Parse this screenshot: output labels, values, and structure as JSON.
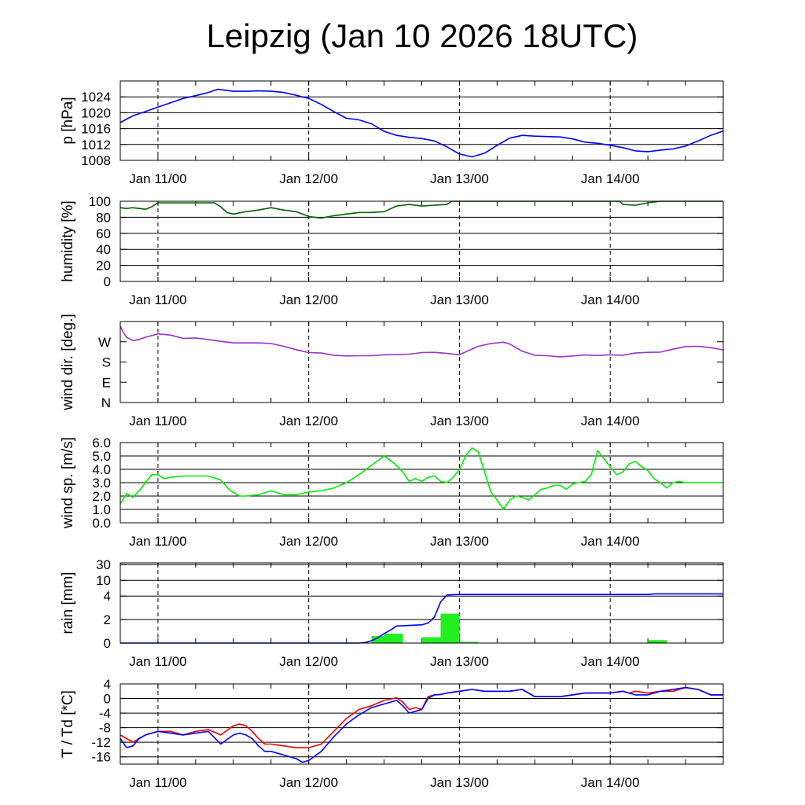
{
  "title": "Leipzig (Jan 10 2026 18UTC)",
  "x_tick_labels": [
    "Jan 11/00",
    "Jan 12/00",
    "Jan 13/00",
    "Jan 14/00"
  ],
  "x_tick_hours": [
    6,
    30,
    54,
    78
  ],
  "x_range_hours": [
    0,
    96
  ],
  "colors": {
    "pressure": "#0000ff",
    "humidity": "#006400",
    "wind_dir": "#9932cc",
    "wind_speed": "#00ee00",
    "rain_bar": "#22ee22",
    "rain_cum": "#0000ff",
    "temp": "#ee0000",
    "dewpoint": "#0000ff"
  },
  "chart_data": [
    {
      "type": "line",
      "id": "pressure",
      "ylabel": "p [hPa]",
      "ylim": [
        1008,
        1028
      ],
      "yticks": [
        1008,
        1012,
        1016,
        1020,
        1024
      ],
      "ytick_labels": [
        "1008",
        "1012",
        "1016",
        "1020",
        "1024"
      ],
      "series": [
        {
          "name": "p",
          "x": [
            0,
            1,
            2,
            4,
            6,
            8,
            10,
            12,
            14,
            15.5,
            18,
            20,
            22,
            24,
            26,
            28,
            30,
            32,
            34,
            36,
            38,
            40,
            42,
            44,
            46,
            48,
            50,
            52,
            54,
            56,
            58,
            60,
            62,
            64,
            66,
            68,
            70,
            72,
            74,
            76,
            78,
            80,
            82,
            84,
            86,
            88,
            90,
            92,
            94,
            96
          ],
          "y": [
            1017.5,
            1018.4,
            1019.2,
            1020.3,
            1021.4,
            1022.5,
            1023.6,
            1024.3,
            1025.1,
            1025.9,
            1025.4,
            1025.4,
            1025.5,
            1025.4,
            1025.1,
            1024.4,
            1023.6,
            1022.1,
            1020.3,
            1018.6,
            1018.2,
            1017.2,
            1015.3,
            1014.3,
            1013.8,
            1013.5,
            1012.9,
            1011.4,
            1009.6,
            1008.9,
            1009.8,
            1011.8,
            1013.6,
            1014.3,
            1014.1,
            1014.0,
            1013.9,
            1013.4,
            1012.6,
            1012.3,
            1011.8,
            1011.2,
            1010.4,
            1010.2,
            1010.6,
            1010.9,
            1011.6,
            1012.9,
            1014.3,
            1015.4
          ]
        }
      ]
    },
    {
      "type": "line",
      "id": "humidity",
      "ylabel": "humidity [%]",
      "ylim": [
        0,
        100
      ],
      "yticks": [
        0,
        20,
        40,
        60,
        80,
        100
      ],
      "ytick_labels": [
        "0",
        "20",
        "40",
        "60",
        "80",
        "100"
      ],
      "series": [
        {
          "name": "humidity",
          "x": [
            0,
            1,
            2,
            4,
            5,
            6,
            8,
            10,
            12,
            14,
            15,
            16,
            17,
            18,
            20,
            22,
            24,
            26,
            28,
            29,
            30,
            32,
            34,
            36,
            38,
            40,
            42,
            44,
            46,
            48,
            50,
            52,
            52.8,
            54,
            56,
            60,
            62,
            64,
            66,
            68,
            70,
            72,
            74,
            76,
            78,
            79.5,
            80,
            82,
            84,
            86,
            88,
            90,
            92,
            94,
            96
          ],
          "y": [
            92,
            91,
            92,
            90,
            93,
            98,
            98,
            98,
            98,
            98,
            98,
            93,
            86,
            84,
            87,
            89,
            92,
            89,
            87,
            84,
            81,
            79,
            82,
            84,
            86,
            86,
            87,
            94,
            96,
            94,
            95,
            96,
            100,
            100,
            100,
            100,
            100,
            100,
            100,
            100,
            100,
            100,
            100,
            100,
            100,
            100,
            96,
            95,
            98,
            100,
            100,
            100,
            100,
            100,
            100
          ]
        }
      ]
    },
    {
      "type": "line",
      "id": "wind_dir",
      "ylabel": "wind dir. [deg.]",
      "ylim": [
        0,
        360
      ],
      "yticks": [
        0,
        90,
        180,
        270
      ],
      "ytick_labels": [
        "N",
        "E",
        "S",
        "W"
      ],
      "series": [
        {
          "name": "direction",
          "x": [
            0,
            0.5,
            1,
            2,
            3,
            4,
            6,
            8,
            10,
            12,
            14,
            16,
            18,
            20,
            22,
            24,
            26,
            28,
            30,
            32,
            34,
            36,
            38,
            40,
            42,
            44,
            46,
            48,
            50,
            52,
            54,
            55,
            57,
            59,
            61,
            62,
            64,
            66,
            68,
            70,
            72,
            74,
            76,
            78,
            80,
            82,
            84,
            86,
            88,
            90,
            92,
            94,
            96
          ],
          "y": [
            340,
            310,
            290,
            275,
            280,
            290,
            305,
            300,
            285,
            287,
            280,
            272,
            265,
            265,
            265,
            262,
            250,
            235,
            222,
            220,
            210,
            207,
            208,
            208,
            212,
            213,
            215,
            222,
            223,
            218,
            212,
            225,
            250,
            262,
            268,
            260,
            228,
            210,
            208,
            203,
            207,
            211,
            209,
            212,
            210,
            220,
            223,
            224,
            237,
            249,
            250,
            244,
            234
          ]
        }
      ]
    },
    {
      "type": "line",
      "id": "wind_speed",
      "ylabel": "wind sp. [m/s]",
      "ylim": [
        0,
        6
      ],
      "yticks": [
        0,
        1,
        2,
        3,
        4,
        5,
        6
      ],
      "ytick_labels": [
        "0.0",
        "1.0",
        "2.0",
        "3.0",
        "4.0",
        "5.0",
        "6.0"
      ],
      "series": [
        {
          "name": "speed",
          "x": [
            0,
            1,
            2,
            3,
            4,
            5,
            6,
            7,
            8,
            10,
            12,
            14,
            16,
            17.5,
            19,
            20,
            22,
            24,
            26,
            28,
            30,
            32,
            34,
            36,
            38,
            40,
            42,
            43.5,
            45,
            46,
            47,
            48,
            49,
            50,
            51,
            52,
            53,
            54,
            55,
            56,
            57,
            58,
            59,
            60,
            61,
            62,
            63,
            64,
            65,
            66,
            67,
            68,
            69,
            70,
            71,
            72,
            73,
            74,
            75,
            76,
            77,
            78,
            79,
            80,
            81,
            82,
            83,
            84,
            85,
            86,
            87,
            88,
            89,
            90,
            91,
            92,
            93,
            94,
            95,
            96
          ],
          "y": [
            1.4,
            2.2,
            1.9,
            2.4,
            3.0,
            3.6,
            3.6,
            3.3,
            3.4,
            3.5,
            3.5,
            3.5,
            3.2,
            2.4,
            2.0,
            2.0,
            2.1,
            2.4,
            2.1,
            2.1,
            2.3,
            2.4,
            2.6,
            3.0,
            3.6,
            4.3,
            5.0,
            4.5,
            3.8,
            3.1,
            3.3,
            3.1,
            3.4,
            3.5,
            3.1,
            3.0,
            3.4,
            4.0,
            5.0,
            5.6,
            5.3,
            3.8,
            2.3,
            1.7,
            1.0,
            1.7,
            2.0,
            1.9,
            1.7,
            2.1,
            2.5,
            2.6,
            2.8,
            2.8,
            2.5,
            2.9,
            3.0,
            3.1,
            3.6,
            5.4,
            4.8,
            4.2,
            3.6,
            3.8,
            4.4,
            4.6,
            4.2,
            3.9,
            3.3,
            3.0,
            2.6,
            3.0,
            3.1,
            3.0,
            3.0,
            3.0,
            3.0,
            3.0,
            3.0,
            3.0
          ]
        }
      ]
    },
    {
      "type": "bar+line",
      "id": "rain",
      "ylabel": "rain [mm]",
      "scale": "sqrt-like",
      "yticks": [
        0,
        2,
        4,
        10,
        30
      ],
      "ytick_labels": [
        "0",
        "2",
        "4",
        "10",
        "30"
      ],
      "bars": {
        "name": "rain_3h",
        "x_start": [
          40,
          42,
          48,
          51,
          54,
          84
        ],
        "x_end": [
          42,
          45,
          51,
          54,
          57,
          87
        ],
        "values": [
          0.6,
          0.8,
          0.5,
          2.5,
          0.1,
          0.25
        ]
      },
      "series": [
        {
          "name": "rain_total",
          "x": [
            0,
            20,
            38,
            39,
            40,
            41,
            42,
            43,
            44,
            46,
            48,
            49,
            50,
            51,
            52,
            53,
            54,
            60,
            70,
            80,
            84,
            85,
            86,
            90,
            96
          ],
          "y": [
            0,
            0,
            0,
            0.05,
            0.2,
            0.45,
            0.8,
            1.1,
            1.45,
            1.5,
            1.55,
            1.7,
            2.2,
            3.5,
            4.4,
            4.55,
            4.6,
            4.6,
            4.6,
            4.6,
            4.6,
            4.85,
            4.85,
            4.85,
            4.85
          ]
        }
      ]
    },
    {
      "type": "line",
      "id": "temperature",
      "ylabel": "T / Td [*C]",
      "ylim": [
        -18,
        4
      ],
      "yticks": [
        -16,
        -12,
        -8,
        -4,
        0,
        4
      ],
      "ytick_labels": [
        "-16",
        "-12",
        "-8",
        "-4",
        "0",
        "4"
      ],
      "series": [
        {
          "name": "T",
          "x": [
            0,
            1,
            2,
            3,
            4,
            6,
            8,
            10,
            12,
            14,
            16,
            18,
            19,
            20,
            21,
            22,
            23,
            24,
            26,
            28,
            29,
            30,
            32,
            34,
            36,
            38,
            40,
            42,
            44,
            45,
            46,
            47,
            48,
            49,
            50,
            51,
            52,
            54,
            56,
            58,
            60,
            62,
            64,
            66,
            68,
            70,
            72,
            74,
            76,
            78,
            80,
            81,
            82,
            84,
            86,
            88,
            90,
            92,
            94,
            96
          ],
          "y": [
            -10,
            -11,
            -12,
            -11,
            -10,
            -9,
            -9,
            -10,
            -9,
            -8.5,
            -10,
            -7.5,
            -7,
            -7.5,
            -9,
            -11,
            -12.5,
            -12.5,
            -13,
            -13.5,
            -13.5,
            -13.5,
            -12.5,
            -9,
            -5.5,
            -3,
            -2,
            -0.5,
            0.2,
            -1,
            -3,
            -2.5,
            -3,
            0.5,
            1,
            1.1,
            1.5,
            2,
            2.5,
            2,
            2,
            2,
            2.5,
            0.5,
            0.5,
            0.5,
            1,
            1.5,
            1.5,
            1.5,
            2,
            1.5,
            2,
            1.5,
            2,
            2,
            3,
            2.5,
            1,
            1
          ]
        },
        {
          "name": "Td",
          "x": [
            0,
            1,
            2,
            3,
            4,
            6,
            8,
            10,
            12,
            14,
            16,
            18,
            19,
            20,
            21,
            22,
            23,
            24,
            26,
            28,
            29,
            30,
            32,
            34,
            36,
            38,
            40,
            42,
            44,
            45,
            46,
            47,
            48,
            49,
            50,
            51,
            52,
            54,
            56,
            58,
            60,
            62,
            64,
            66,
            68,
            70,
            72,
            74,
            76,
            78,
            80,
            81,
            82,
            84,
            86,
            88,
            90,
            92,
            94,
            96
          ],
          "y": [
            -11,
            -13.5,
            -13,
            -11,
            -10,
            -9,
            -9.5,
            -10,
            -9.5,
            -9,
            -12.5,
            -10,
            -9.5,
            -10,
            -11,
            -13,
            -14.5,
            -14.5,
            -15.5,
            -16.5,
            -17.5,
            -17,
            -14.5,
            -10.5,
            -7,
            -4.5,
            -2.5,
            -1.5,
            -0.5,
            -2,
            -4,
            -3.5,
            -3,
            0,
            1,
            1.1,
            1.5,
            2,
            2.5,
            2,
            2,
            2,
            2.5,
            0.5,
            0.5,
            0.5,
            1,
            1.5,
            1.5,
            1.5,
            2,
            1.5,
            1,
            1,
            2,
            2.5,
            3,
            2.5,
            1,
            1
          ]
        }
      ]
    }
  ]
}
